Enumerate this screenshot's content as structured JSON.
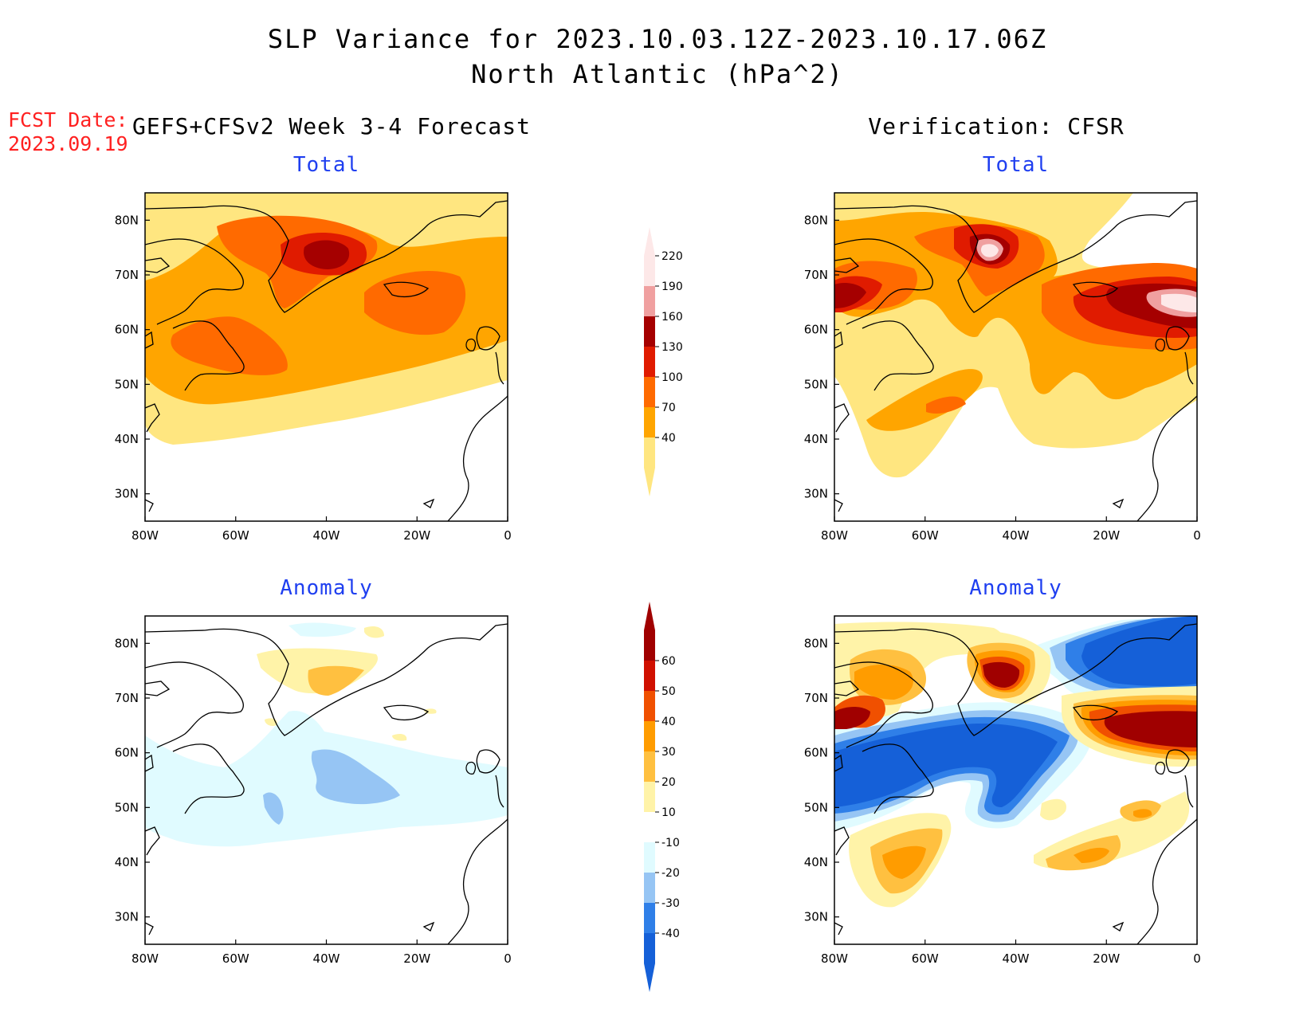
{
  "title_line1": "SLP Variance for 2023.10.03.12Z-2023.10.17.06Z",
  "title_line2": "North Atlantic (hPa^2)",
  "fcst_date_label": "FCST Date:",
  "fcst_date_value": "2023.09.19",
  "left_column_header": "GEFS+CFSv2 Week 3-4 Forecast",
  "right_column_header": "Verification: CFSR",
  "panels": {
    "forecast_total": {
      "title": "Total"
    },
    "verification_total": {
      "title": "Total"
    },
    "forecast_anomaly": {
      "title": "Anomaly"
    },
    "verification_anomaly": {
      "title": "Anomaly"
    }
  },
  "map_axes": {
    "lat_labels": [
      "80N",
      "70N",
      "60N",
      "50N",
      "40N",
      "30N"
    ],
    "lat_values": [
      80,
      70,
      60,
      50,
      40,
      30
    ],
    "lon_labels": [
      "80W",
      "60W",
      "40W",
      "20W",
      "0"
    ],
    "lon_values": [
      -80,
      -60,
      -40,
      -20,
      0
    ],
    "lat_range": [
      25,
      85
    ],
    "lon_range": [
      -80,
      0
    ]
  },
  "colorbar_total": {
    "levels": [
      "40",
      "70",
      "100",
      "130",
      "160",
      "190",
      "220"
    ],
    "colors": [
      "#ffe680",
      "#ffa500",
      "#ff6a00",
      "#e01b00",
      "#a50000",
      "#f0a0a0",
      "#fde8e8"
    ]
  },
  "colorbar_anomaly": {
    "levels": [
      "-40",
      "-30",
      "-20",
      "-10",
      "10",
      "20",
      "30",
      "40",
      "50",
      "60"
    ],
    "colors": [
      "#1560d8",
      "#2f7fe8",
      "#96c5f4",
      "#e0fbff",
      "#ffffff",
      "#fff3a8",
      "#ffc040",
      "#ff9c00",
      "#f05000",
      "#d01000",
      "#a00000"
    ]
  },
  "map_colors": {
    "c40": "#ffe680",
    "c70": "#ffa500",
    "c100": "#ff6a00",
    "c130": "#e01b00",
    "c160": "#a50000",
    "c190": "#f0a0a0",
    "c220": "#fde8e8",
    "a_m40": "#1560d8",
    "a_m30": "#2f7fe8",
    "a_m20": "#96c5f4",
    "a_m10": "#e0fbff",
    "a_10": "#fff3a8",
    "a_20": "#ffc040",
    "a_30": "#ff9c00",
    "a_40": "#f05000",
    "a_50": "#a00000"
  }
}
